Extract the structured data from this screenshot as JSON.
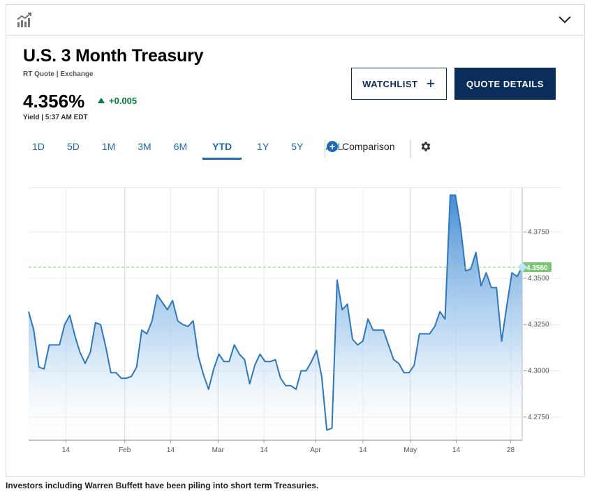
{
  "widget": {
    "icon": "bar-chart-trend-icon",
    "collapse_icon": "chevron-down-icon"
  },
  "quote": {
    "title": "U.S. 3 Month Treasury",
    "subtitle": "RT Quote | Exchange",
    "last": "4.356%",
    "change": "+0.005",
    "time_info": "Yield | 5:37 AM EDT"
  },
  "buttons": {
    "watchlist": "WATCHLIST",
    "quote_details": "QUOTE DETAILS"
  },
  "ranges": [
    "1D",
    "5D",
    "1M",
    "3M",
    "6M",
    "YTD",
    "1Y",
    "5Y",
    "ALL"
  ],
  "active_range": "YTD",
  "comparison_label": "Comparison",
  "settings_icon": "gear-icon",
  "colors": {
    "line": "#2f77b8",
    "up": "#0a7a3c",
    "navy": "#0b2d5b",
    "accent": "#1f69b4",
    "last_marker": "#7cc576"
  },
  "caption": "Investors including Warren Buffett have been piling into short term Treasuries.",
  "chart_data": {
    "type": "area",
    "title": "",
    "xlabel": "",
    "ylabel": "",
    "x_ticks": [
      "14",
      "Feb",
      "14",
      "Mar",
      "14",
      "Apr",
      "14",
      "May",
      "14",
      "28"
    ],
    "y_ticks": [
      "4.2750",
      "4.3000",
      "4.3250",
      "4.3500",
      "4.3750"
    ],
    "y_range": [
      4.2625,
      4.399
    ],
    "grid": true,
    "last_value_label": "4.3560",
    "last_value": 4.356,
    "series": [
      {
        "values": [
          4.332,
          4.322,
          4.302,
          4.301,
          4.314,
          4.314,
          4.314,
          4.325,
          4.33,
          4.319,
          4.31,
          4.304,
          4.31,
          4.326,
          4.325,
          4.313,
          4.299,
          4.299,
          4.296,
          4.296,
          4.297,
          4.302,
          4.322,
          4.32,
          4.327,
          4.341,
          4.337,
          4.333,
          4.338,
          4.327,
          4.325,
          4.324,
          4.327,
          4.308,
          4.298,
          4.29,
          4.301,
          4.309,
          4.305,
          4.305,
          4.314,
          4.309,
          4.306,
          4.293,
          4.303,
          4.309,
          4.305,
          4.305,
          4.306,
          4.296,
          4.292,
          4.292,
          4.29,
          4.3,
          4.3,
          4.305,
          4.311,
          4.297,
          4.268,
          4.269,
          4.349,
          4.333,
          4.336,
          4.317,
          4.314,
          4.316,
          4.328,
          4.322,
          4.322,
          4.322,
          4.314,
          4.306,
          4.304,
          4.299,
          4.299,
          4.303,
          4.32,
          4.32,
          4.32,
          4.324,
          4.332,
          4.328,
          4.395,
          4.395,
          4.378,
          4.354,
          4.355,
          4.364,
          4.346,
          4.353,
          4.345,
          4.345,
          4.316,
          4.335,
          4.353,
          4.351,
          4.356
        ]
      }
    ]
  }
}
